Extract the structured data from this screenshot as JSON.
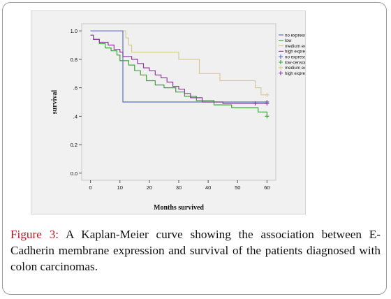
{
  "figure": {
    "label": "Figure 3:",
    "caption": " A Kaplan-Meier curve showing the association between E-Cadherin membrane expression and survival of the patients diagnosed with colon carcinomas."
  },
  "chart_data": {
    "type": "line",
    "step": true,
    "xlabel": "Months survived",
    "ylabel": "survival",
    "xlim": [
      -3,
      63
    ],
    "ylim": [
      -0.05,
      1.05
    ],
    "xticks": [
      0,
      10,
      20,
      30,
      40,
      50,
      60
    ],
    "yticks": [
      0.0,
      0.2,
      0.4,
      0.6,
      0.8,
      1.0
    ],
    "ytick_labels": [
      "0.0",
      "0.2",
      ".4",
      ".6",
      "0.8",
      "1.0"
    ],
    "legend_position": "top-right",
    "series": [
      {
        "name": "no expression",
        "color": "#5a6fc4",
        "points": [
          [
            0,
            1.0
          ],
          [
            11,
            1.0
          ],
          [
            11,
            0.5
          ],
          [
            60,
            0.5
          ]
        ],
        "censored": [
          [
            60,
            0.5
          ]
        ]
      },
      {
        "name": "low",
        "color": "#3aa63a",
        "points": [
          [
            0,
            0.97
          ],
          [
            1,
            0.97
          ],
          [
            1,
            0.94
          ],
          [
            3,
            0.94
          ],
          [
            3,
            0.91
          ],
          [
            5,
            0.91
          ],
          [
            5,
            0.88
          ],
          [
            7,
            0.88
          ],
          [
            7,
            0.86
          ],
          [
            9,
            0.86
          ],
          [
            9,
            0.83
          ],
          [
            10,
            0.83
          ],
          [
            10,
            0.79
          ],
          [
            13,
            0.79
          ],
          [
            13,
            0.76
          ],
          [
            15,
            0.76
          ],
          [
            15,
            0.72
          ],
          [
            17,
            0.72
          ],
          [
            17,
            0.69
          ],
          [
            19,
            0.69
          ],
          [
            19,
            0.65
          ],
          [
            22,
            0.65
          ],
          [
            22,
            0.62
          ],
          [
            25,
            0.62
          ],
          [
            25,
            0.6
          ],
          [
            29,
            0.6
          ],
          [
            29,
            0.57
          ],
          [
            32,
            0.57
          ],
          [
            32,
            0.54
          ],
          [
            36,
            0.54
          ],
          [
            36,
            0.51
          ],
          [
            42,
            0.51
          ],
          [
            42,
            0.48
          ],
          [
            48,
            0.48
          ],
          [
            48,
            0.46
          ],
          [
            57,
            0.46
          ],
          [
            57,
            0.43
          ],
          [
            60,
            0.43
          ],
          [
            60,
            0.4
          ]
        ],
        "censored": [
          [
            60,
            0.4
          ]
        ]
      },
      {
        "name": "medium expression",
        "color": "#d9c98f",
        "points": [
          [
            0,
            1.0
          ],
          [
            12,
            1.0
          ],
          [
            12,
            0.95
          ],
          [
            13,
            0.95
          ],
          [
            13,
            0.9
          ],
          [
            14,
            0.9
          ],
          [
            14,
            0.85
          ],
          [
            30,
            0.85
          ],
          [
            30,
            0.8
          ],
          [
            37,
            0.8
          ],
          [
            37,
            0.7
          ],
          [
            44,
            0.7
          ],
          [
            44,
            0.65
          ],
          [
            56,
            0.65
          ],
          [
            56,
            0.6
          ],
          [
            58,
            0.6
          ],
          [
            58,
            0.55
          ],
          [
            60,
            0.55
          ]
        ],
        "censored": [
          [
            60,
            0.55
          ]
        ]
      },
      {
        "name": "high expression",
        "color": "#8e3b9e",
        "points": [
          [
            0,
            0.97
          ],
          [
            1,
            0.97
          ],
          [
            1,
            0.94
          ],
          [
            3,
            0.94
          ],
          [
            3,
            0.92
          ],
          [
            6,
            0.92
          ],
          [
            6,
            0.9
          ],
          [
            8,
            0.9
          ],
          [
            8,
            0.87
          ],
          [
            10,
            0.87
          ],
          [
            10,
            0.85
          ],
          [
            11,
            0.85
          ],
          [
            11,
            0.82
          ],
          [
            14,
            0.82
          ],
          [
            14,
            0.8
          ],
          [
            16,
            0.8
          ],
          [
            16,
            0.77
          ],
          [
            18,
            0.77
          ],
          [
            18,
            0.74
          ],
          [
            20,
            0.74
          ],
          [
            20,
            0.72
          ],
          [
            22,
            0.72
          ],
          [
            22,
            0.69
          ],
          [
            24,
            0.69
          ],
          [
            24,
            0.67
          ],
          [
            26,
            0.67
          ],
          [
            26,
            0.64
          ],
          [
            28,
            0.64
          ],
          [
            28,
            0.61
          ],
          [
            30,
            0.61
          ],
          [
            30,
            0.59
          ],
          [
            32,
            0.59
          ],
          [
            32,
            0.56
          ],
          [
            34,
            0.56
          ],
          [
            34,
            0.53
          ],
          [
            38,
            0.53
          ],
          [
            38,
            0.5
          ],
          [
            45,
            0.5
          ],
          [
            45,
            0.49
          ],
          [
            60,
            0.49
          ]
        ],
        "censored": [
          [
            56,
            0.49
          ],
          [
            60,
            0.49
          ]
        ]
      }
    ],
    "legend": [
      {
        "label": "no expression",
        "color": "#5a6fc4",
        "marker": "line"
      },
      {
        "label": "low",
        "color": "#3aa63a",
        "marker": "line"
      },
      {
        "label": "medium expression",
        "color": "#d9c98f",
        "marker": "line"
      },
      {
        "label": "high expression",
        "color": "#8e3b9e",
        "marker": "line"
      },
      {
        "label": "no expression-censored",
        "color": "#5a6fc4",
        "marker": "plus"
      },
      {
        "label": "low-censored",
        "color": "#3aa63a",
        "marker": "plus"
      },
      {
        "label": "medium expression-censored",
        "color": "#d9c98f",
        "marker": "plus"
      },
      {
        "label": "high expression-censored",
        "color": "#8e3b9e",
        "marker": "plus"
      }
    ]
  }
}
